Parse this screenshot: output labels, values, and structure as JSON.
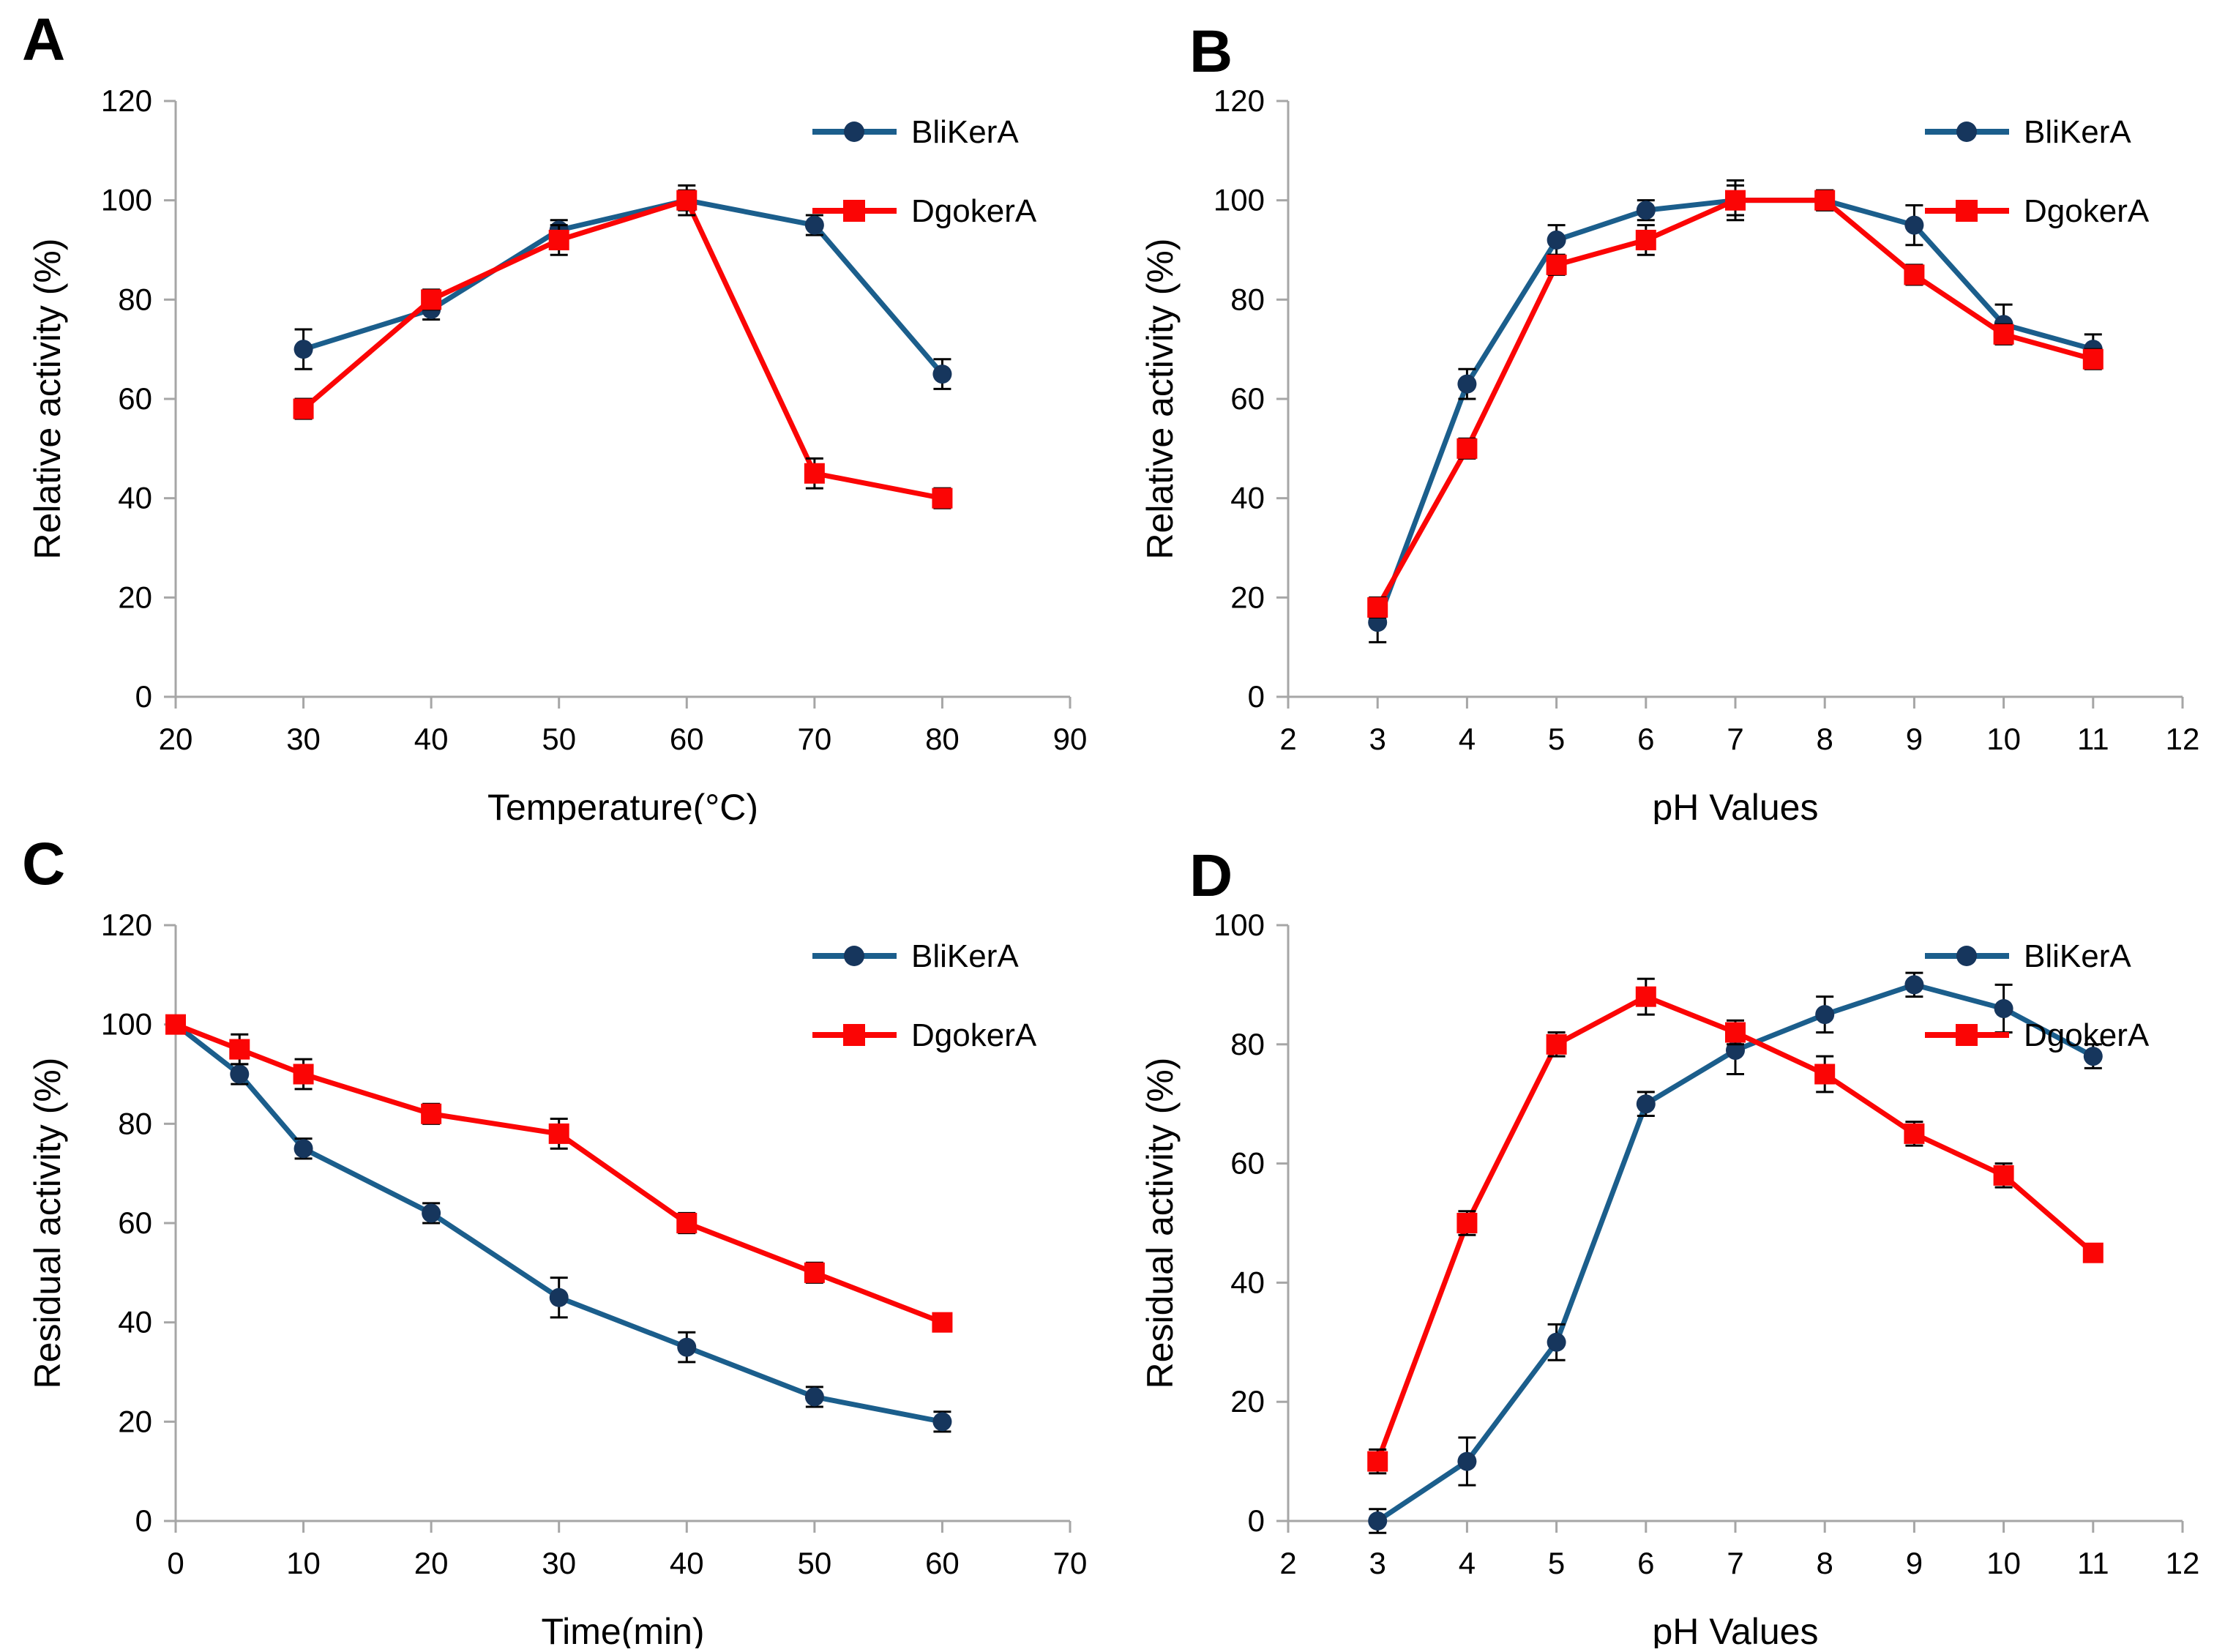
{
  "figure_title": "",
  "colors": {
    "axis": "#A6A6A6",
    "text": "#000000",
    "error_bar": "#000000",
    "blikera_line": "#1B5E8C",
    "blikera_marker": "#16365D",
    "dgokera_line": "#FB0505",
    "dgokera_marker": "#FB0505"
  },
  "legend_labels": [
    "BliKerA",
    "DgokerA"
  ],
  "chart_data": [
    {
      "panel_label": "A",
      "type": "line",
      "title": "",
      "xlabel": "Temperature(°C)",
      "ylabel": "Relative activity (%)",
      "xlim": [
        20,
        90
      ],
      "xticks": [
        20,
        30,
        40,
        50,
        60,
        70,
        80,
        90
      ],
      "ylim": [
        0,
        120
      ],
      "yticks": [
        0,
        20,
        40,
        60,
        80,
        100,
        120
      ],
      "grid": false,
      "legend_position": "top-right",
      "x": [
        30,
        40,
        50,
        60,
        70,
        80
      ],
      "series": [
        {
          "name": "BliKerA",
          "marker": "circle",
          "line_color": "#1B5E8C",
          "marker_color": "#16365D",
          "values": [
            70,
            78,
            94,
            100,
            95,
            65
          ],
          "err": [
            4,
            2,
            2,
            2,
            2,
            3
          ]
        },
        {
          "name": "DgokerA",
          "marker": "square",
          "line_color": "#FB0505",
          "marker_color": "#FB0505",
          "values": [
            58,
            80,
            92,
            100,
            45,
            40
          ],
          "err": [
            2,
            2,
            3,
            3,
            3,
            2
          ]
        }
      ]
    },
    {
      "panel_label": "B",
      "type": "line",
      "title": "",
      "xlabel": "pH Values",
      "ylabel": "Relative activity (%)",
      "xlim": [
        2,
        12
      ],
      "xticks": [
        2,
        3,
        4,
        5,
        6,
        7,
        8,
        9,
        10,
        11,
        12
      ],
      "ylim": [
        0,
        120
      ],
      "yticks": [
        0,
        20,
        40,
        60,
        80,
        100,
        120
      ],
      "grid": false,
      "legend_position": "top-right",
      "x": [
        3,
        4,
        5,
        6,
        7,
        8,
        9,
        10,
        11
      ],
      "series": [
        {
          "name": "BliKerA",
          "marker": "circle",
          "line_color": "#1B5E8C",
          "marker_color": "#16365D",
          "values": [
            15,
            63,
            92,
            98,
            100,
            100,
            95,
            75,
            70
          ],
          "err": [
            4,
            3,
            3,
            2,
            4,
            2,
            4,
            4,
            3
          ]
        },
        {
          "name": "DgokerA",
          "marker": "square",
          "line_color": "#FB0505",
          "marker_color": "#FB0505",
          "values": [
            18,
            50,
            87,
            92,
            100,
            100,
            85,
            73,
            68
          ],
          "err": [
            2,
            2,
            2,
            3,
            3,
            2,
            2,
            2,
            2
          ]
        }
      ]
    },
    {
      "panel_label": "C",
      "type": "line",
      "title": "",
      "xlabel": "Time(min)",
      "ylabel": "Residual activity (%)",
      "xlim": [
        0,
        70
      ],
      "xticks": [
        0,
        10,
        20,
        30,
        40,
        50,
        60,
        70
      ],
      "ylim": [
        0,
        120
      ],
      "yticks": [
        0,
        20,
        40,
        60,
        80,
        100,
        120
      ],
      "grid": false,
      "legend_position": "top-right",
      "x": [
        0,
        5,
        10,
        20,
        30,
        40,
        50,
        60
      ],
      "series": [
        {
          "name": "BliKerA",
          "marker": "circle",
          "line_color": "#1B5E8C",
          "marker_color": "#16365D",
          "values": [
            100,
            90,
            75,
            62,
            45,
            35,
            25,
            20
          ],
          "err": [
            1,
            2,
            2,
            2,
            4,
            3,
            2,
            2
          ]
        },
        {
          "name": "DgokerA",
          "marker": "square",
          "line_color": "#FB0505",
          "marker_color": "#FB0505",
          "values": [
            100,
            95,
            90,
            82,
            78,
            60,
            50,
            40
          ],
          "err": [
            1,
            3,
            3,
            2,
            3,
            2,
            2,
            1
          ]
        }
      ]
    },
    {
      "panel_label": "D",
      "type": "line",
      "title": "",
      "xlabel": "pH Values",
      "ylabel": "Residual activity (%)",
      "xlim": [
        2,
        12
      ],
      "xticks": [
        2,
        3,
        4,
        5,
        6,
        7,
        8,
        9,
        10,
        11,
        12
      ],
      "ylim": [
        0,
        100
      ],
      "yticks": [
        0,
        20,
        40,
        60,
        80,
        100
      ],
      "grid": false,
      "legend_position": "top-right",
      "x": [
        3,
        4,
        5,
        6,
        7,
        8,
        9,
        10,
        11
      ],
      "series": [
        {
          "name": "BliKerA",
          "marker": "circle",
          "line_color": "#1B5E8C",
          "marker_color": "#16365D",
          "values": [
            0,
            10,
            30,
            70,
            79,
            85,
            90,
            86,
            78
          ],
          "err": [
            2,
            4,
            3,
            2,
            4,
            3,
            2,
            4,
            2
          ]
        },
        {
          "name": "DgokerA",
          "marker": "square",
          "line_color": "#FB0505",
          "marker_color": "#FB0505",
          "values": [
            10,
            50,
            80,
            88,
            82,
            75,
            65,
            58,
            45
          ],
          "err": [
            2,
            2,
            2,
            3,
            2,
            3,
            2,
            2,
            1
          ]
        }
      ]
    }
  ]
}
